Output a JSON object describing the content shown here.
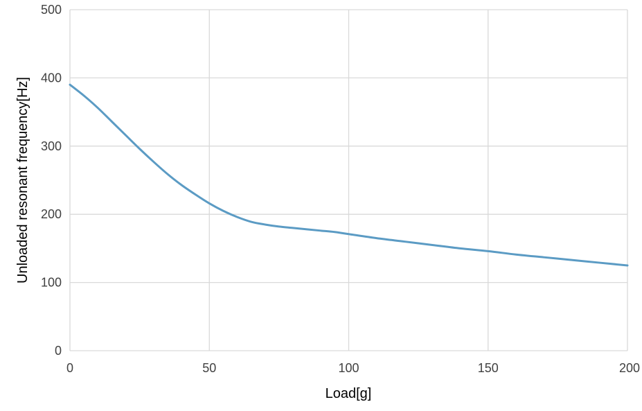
{
  "chart_data": {
    "type": "line",
    "title": "",
    "xlabel": "Load[g]",
    "ylabel": "Unloaded resonant frequency[Hz]",
    "xlim": [
      0,
      200
    ],
    "ylim": [
      0,
      500
    ],
    "x_ticks": [
      0,
      50,
      100,
      150,
      200
    ],
    "y_ticks": [
      0,
      100,
      200,
      300,
      400,
      500
    ],
    "x_tick_labels": [
      "0",
      "50",
      "100",
      "150",
      "200"
    ],
    "y_tick_labels": [
      "0",
      "100",
      "200",
      "300",
      "400",
      "500"
    ],
    "grid": true,
    "legend": "none",
    "colors": {
      "line": "#5b9bc4",
      "grid": "#d9d9d9"
    },
    "series": [
      {
        "x": [
          0,
          5,
          10,
          15,
          20,
          25,
          30,
          35,
          40,
          45,
          50,
          55,
          60,
          65,
          70,
          75,
          80,
          85,
          90,
          95,
          100,
          110,
          120,
          130,
          140,
          150,
          160,
          170,
          180,
          190,
          200
        ],
        "y": [
          390,
          374,
          356,
          336,
          316,
          296,
          277,
          259,
          243,
          229,
          216,
          205,
          196,
          189,
          185,
          182,
          180,
          178,
          176,
          174,
          171,
          165,
          160,
          155,
          150,
          146,
          141,
          137,
          133,
          129,
          125
        ]
      }
    ]
  }
}
